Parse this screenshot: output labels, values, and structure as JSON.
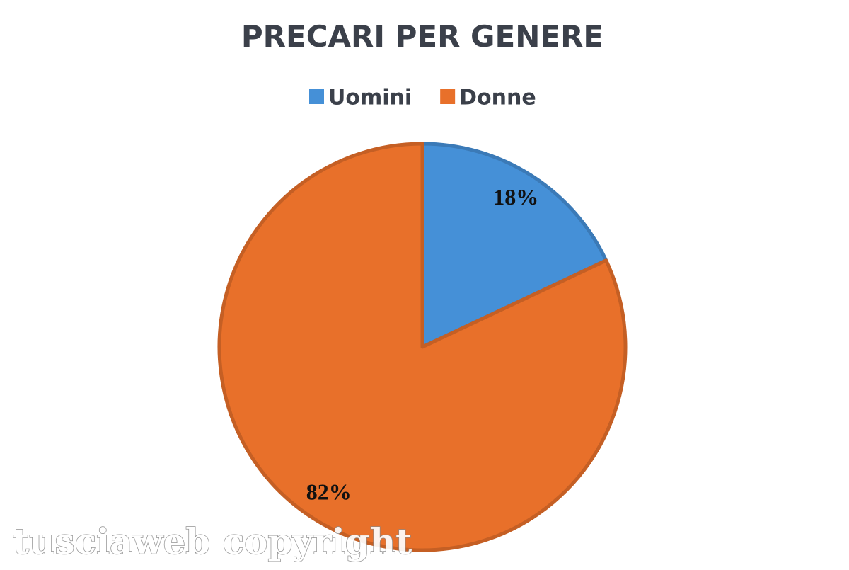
{
  "chart_data": {
    "type": "pie",
    "title": "PRECARI PER GENERE",
    "categories": [
      "Uomini",
      "Donne"
    ],
    "values": [
      18,
      82
    ],
    "value_labels": [
      "18%",
      "82%"
    ],
    "colors": [
      "#4590d7",
      "#e8702a"
    ],
    "legend": "top",
    "watermark": "tusciaweb copyright"
  }
}
